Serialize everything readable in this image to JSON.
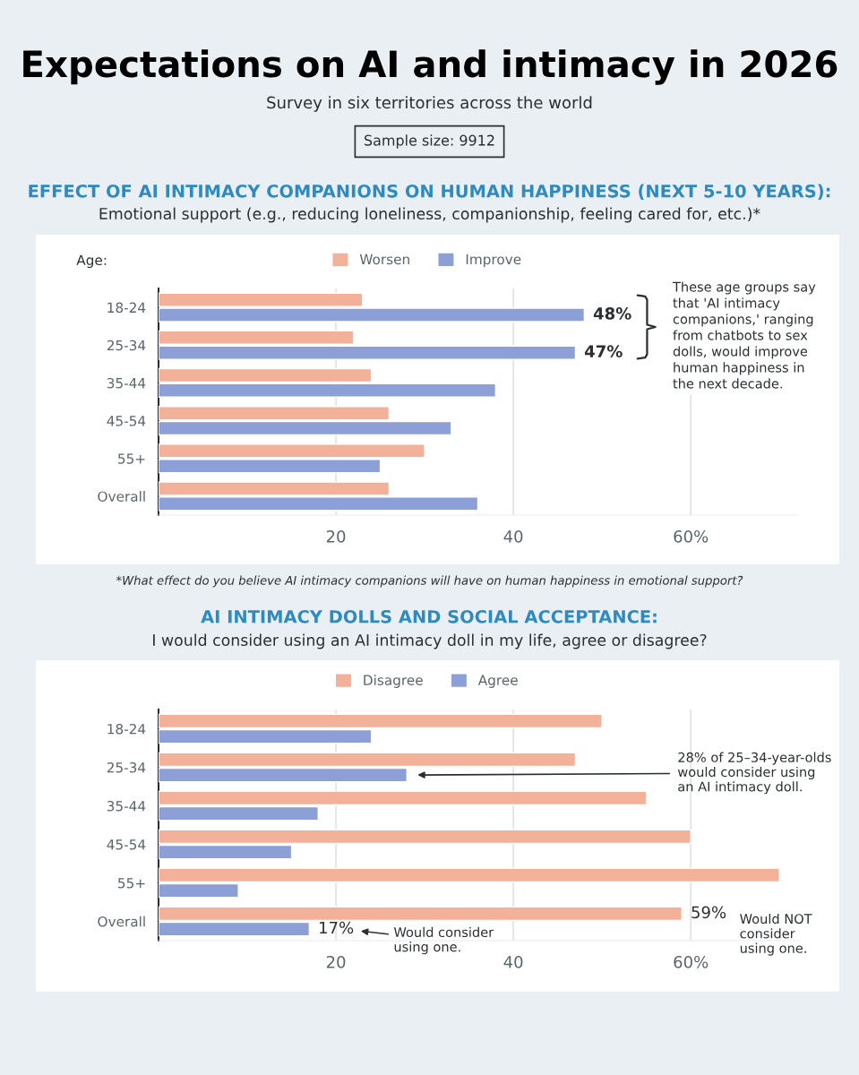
{
  "chart_data": [
    {
      "type": "other",
      "title": "Expectations on AI and intimacy in 2026",
      "subtitle": "Survey in six territories across the world",
      "annotations": [
        "Sample size: 9912"
      ]
    },
    {
      "type": "bar",
      "orientation": "horizontal",
      "title": "EFFECT OF AI INTIMACY COMPANIONS ON HUMAN HAPPINESS (NEXT 5-10 YEARS):",
      "subtitle": "Emotional support (e.g., reducing loneliness, companionship, feeling cared for, etc.)*",
      "categories": [
        "18-24",
        "25-34",
        "35-44",
        "45-54",
        "55+",
        "Overall"
      ],
      "series": [
        {
          "name": "Worsen",
          "color": "#f4b19a",
          "values": [
            23,
            22,
            24,
            26,
            30,
            26
          ]
        },
        {
          "name": "Improve",
          "color": "#8c9fd6",
          "values": [
            48,
            47,
            38,
            33,
            25,
            36
          ],
          "value_labels": [
            "48%",
            "47%",
            null,
            null,
            null,
            null
          ]
        }
      ],
      "xlim": [
        0,
        72
      ],
      "xticks": [
        20,
        40,
        {
          "value": 60,
          "label": "60%"
        }
      ],
      "grid": "x",
      "legend": "top",
      "annotations": [
        "Age:",
        "These age groups say\nthat 'AI intimacy\ncompanions,' ranging\nfrom chatbots to sex\ndolls, would improve\nhuman happiness in\nthe next decade.",
        "*What effect do you believe AI intimacy companions will have on human happiness in emotional support?"
      ]
    },
    {
      "type": "bar",
      "orientation": "horizontal",
      "title": "AI INTIMACY DOLLS AND SOCIAL ACCEPTANCE:",
      "subtitle": "I would consider using an AI intimacy doll in my life, agree or disagree?",
      "categories": [
        "18-24",
        "25-34",
        "35-44",
        "45-54",
        "55+",
        "Overall"
      ],
      "series": [
        {
          "name": "Disagree",
          "color": "#f4b19a",
          "values": [
            50,
            47,
            55,
            60,
            70,
            59
          ],
          "value_labels": [
            null,
            null,
            null,
            null,
            null,
            "59%"
          ]
        },
        {
          "name": "Agree",
          "color": "#8c9fd6",
          "values": [
            24,
            28,
            18,
            15,
            9,
            17
          ],
          "value_labels": [
            null,
            null,
            null,
            null,
            null,
            "17%"
          ]
        }
      ],
      "xlim": [
        0,
        72
      ],
      "xticks": [
        20,
        40,
        {
          "value": 60,
          "label": "60%"
        }
      ],
      "grid": "x",
      "legend": "top",
      "annotations": [
        "28% of 25–34-year-olds\nwould consider using\nan AI intimacy doll.",
        "Would consider\nusing one.",
        "Would NOT\nconsider\nusing one."
      ]
    }
  ]
}
